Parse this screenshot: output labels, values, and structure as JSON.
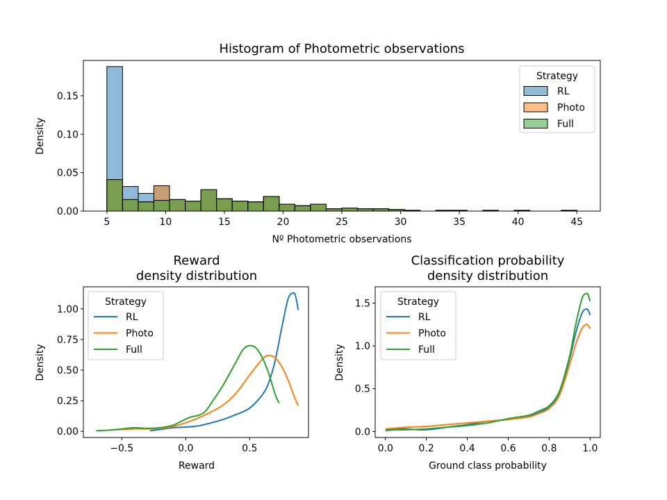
{
  "chart_data": [
    {
      "type": "bar",
      "title": "Histogram of Photometric observations",
      "xlabel": "Nº Photometric observations",
      "ylabel": "Density",
      "xlim": [
        3.0,
        47.0
      ],
      "ylim": [
        0,
        0.196
      ],
      "xticks": [
        5,
        10,
        15,
        20,
        25,
        30,
        35,
        40,
        45
      ],
      "yticks": [
        0.0,
        0.05,
        0.1,
        0.15
      ],
      "ytick_labels": [
        "0.00",
        "0.05",
        "0.10",
        "0.15"
      ],
      "bin_edges": [
        5.0,
        6.333,
        7.667,
        9.0,
        10.333,
        11.667,
        13.0,
        14.333,
        15.667,
        17.0,
        18.333,
        19.667,
        21.0,
        22.333,
        23.667,
        25.0,
        26.333,
        27.667,
        29.0,
        30.333,
        31.667,
        33.0,
        34.333,
        35.667,
        37.0,
        38.333,
        39.667,
        41.0,
        42.333,
        43.667,
        45.0
      ],
      "legend": {
        "title": "Strategy",
        "position": "upper right"
      },
      "series": [
        {
          "name": "RL",
          "color": "#1f77b4",
          "values": [
            0.188,
            0.032,
            0.023,
            0.033,
            0.015,
            0.013,
            0.028,
            0.016,
            0.013,
            0.012,
            0.019,
            0.009,
            0.007,
            0.009,
            0.003,
            0.004,
            0.003,
            0.003,
            0.002,
            0.001,
            0.0,
            0.001,
            0.001,
            0.0,
            0.001,
            0.0,
            0.001,
            0.0,
            0.0,
            0.001
          ]
        },
        {
          "name": "Photo",
          "color": "#ff7f0e",
          "values": [
            0.041,
            0.015,
            0.012,
            0.033,
            0.015,
            0.013,
            0.028,
            0.016,
            0.013,
            0.012,
            0.019,
            0.009,
            0.007,
            0.009,
            0.003,
            0.004,
            0.003,
            0.003,
            0.002,
            0.001,
            0.0,
            0.001,
            0.001,
            0.0,
            0.001,
            0.0,
            0.001,
            0.0,
            0.0,
            0.001
          ]
        },
        {
          "name": "Full",
          "color": "#2ca02c",
          "values": [
            0.041,
            0.015,
            0.012,
            0.014,
            0.015,
            0.013,
            0.028,
            0.016,
            0.013,
            0.012,
            0.019,
            0.009,
            0.007,
            0.009,
            0.003,
            0.004,
            0.003,
            0.003,
            0.002,
            0.001,
            0.0,
            0.001,
            0.001,
            0.0,
            0.001,
            0.0,
            0.001,
            0.0,
            0.0,
            0.001
          ]
        }
      ]
    },
    {
      "type": "line",
      "title": [
        "Reward",
        "density distribution"
      ],
      "xlabel": "Reward",
      "ylabel": "Density",
      "xlim": [
        -0.8,
        0.96
      ],
      "ylim": [
        -0.05,
        1.18
      ],
      "xticks": [
        -0.5,
        0.0,
        0.5
      ],
      "xtick_labels": [
        "−0.5",
        "0.0",
        "0.5"
      ],
      "yticks": [
        0.0,
        0.25,
        0.5,
        0.75,
        1.0
      ],
      "ytick_labels": [
        "0.00",
        "0.25",
        "0.50",
        "0.75",
        "1.00"
      ],
      "legend": {
        "title": "Strategy",
        "position": "upper left"
      },
      "series": [
        {
          "name": "RL",
          "color": "#1f77b4",
          "x": [
            -0.28,
            -0.2,
            -0.1,
            0.0,
            0.1,
            0.2,
            0.3,
            0.4,
            0.5,
            0.6,
            0.65,
            0.7,
            0.75,
            0.8,
            0.84,
            0.86,
            0.88
          ],
          "y": [
            0.005,
            0.015,
            0.03,
            0.035,
            0.045,
            0.07,
            0.1,
            0.14,
            0.19,
            0.3,
            0.4,
            0.58,
            0.84,
            1.08,
            1.13,
            1.1,
            0.99
          ]
        },
        {
          "name": "Photo",
          "color": "#ff7f0e",
          "x": [
            -0.6,
            -0.5,
            -0.4,
            -0.3,
            -0.2,
            -0.1,
            0.0,
            0.1,
            0.2,
            0.3,
            0.4,
            0.5,
            0.6,
            0.65,
            0.7,
            0.75,
            0.8,
            0.85,
            0.88
          ],
          "y": [
            0.01,
            0.015,
            0.02,
            0.02,
            0.025,
            0.04,
            0.07,
            0.11,
            0.16,
            0.22,
            0.32,
            0.46,
            0.59,
            0.62,
            0.6,
            0.53,
            0.42,
            0.28,
            0.21
          ]
        },
        {
          "name": "Full",
          "color": "#2ca02c",
          "x": [
            -0.7,
            -0.6,
            -0.5,
            -0.4,
            -0.3,
            -0.2,
            -0.1,
            0.0,
            0.05,
            0.1,
            0.15,
            0.2,
            0.3,
            0.4,
            0.45,
            0.5,
            0.55,
            0.6,
            0.65,
            0.7,
            0.73
          ],
          "y": [
            0.005,
            0.01,
            0.02,
            0.03,
            0.025,
            0.03,
            0.05,
            0.1,
            0.12,
            0.13,
            0.16,
            0.23,
            0.39,
            0.58,
            0.67,
            0.7,
            0.68,
            0.6,
            0.47,
            0.3,
            0.23
          ]
        }
      ]
    },
    {
      "type": "line",
      "title": [
        "Classification probability",
        "density distribution"
      ],
      "xlabel": "Ground class probability",
      "ylabel": "Density",
      "xlim": [
        -0.05,
        1.05
      ],
      "ylim": [
        -0.07,
        1.69
      ],
      "xticks": [
        0.0,
        0.2,
        0.4,
        0.6,
        0.8,
        1.0
      ],
      "xtick_labels": [
        "0.0",
        "0.2",
        "0.4",
        "0.6",
        "0.8",
        "1.0"
      ],
      "yticks": [
        0.0,
        0.5,
        1.0,
        1.5
      ],
      "ytick_labels": [
        "0.0",
        "0.5",
        "1.0",
        "1.5"
      ],
      "legend": {
        "title": "Strategy",
        "position": "upper left"
      },
      "series": [
        {
          "name": "RL",
          "color": "#1f77b4",
          "x": [
            0.0,
            0.05,
            0.1,
            0.2,
            0.3,
            0.4,
            0.5,
            0.6,
            0.7,
            0.75,
            0.8,
            0.85,
            0.9,
            0.93,
            0.96,
            0.98,
            0.99,
            1.0
          ],
          "y": [
            0.02,
            0.03,
            0.03,
            0.02,
            0.05,
            0.08,
            0.12,
            0.14,
            0.18,
            0.22,
            0.29,
            0.45,
            0.85,
            1.15,
            1.38,
            1.43,
            1.42,
            1.36
          ]
        },
        {
          "name": "Photo",
          "color": "#ff7f0e",
          "x": [
            0.0,
            0.05,
            0.1,
            0.2,
            0.3,
            0.4,
            0.5,
            0.6,
            0.7,
            0.75,
            0.8,
            0.85,
            0.9,
            0.93,
            0.96,
            0.98,
            0.99,
            1.0
          ],
          "y": [
            0.03,
            0.04,
            0.05,
            0.06,
            0.08,
            0.1,
            0.12,
            0.14,
            0.17,
            0.21,
            0.27,
            0.42,
            0.78,
            1.02,
            1.2,
            1.25,
            1.24,
            1.2
          ]
        },
        {
          "name": "Full",
          "color": "#2ca02c",
          "x": [
            0.0,
            0.05,
            0.1,
            0.2,
            0.3,
            0.4,
            0.5,
            0.6,
            0.7,
            0.75,
            0.8,
            0.85,
            0.9,
            0.93,
            0.96,
            0.98,
            0.99,
            1.0
          ],
          "y": [
            0.01,
            0.02,
            0.02,
            0.03,
            0.05,
            0.07,
            0.1,
            0.15,
            0.19,
            0.24,
            0.3,
            0.47,
            0.88,
            1.25,
            1.55,
            1.61,
            1.6,
            1.52
          ]
        }
      ]
    }
  ]
}
